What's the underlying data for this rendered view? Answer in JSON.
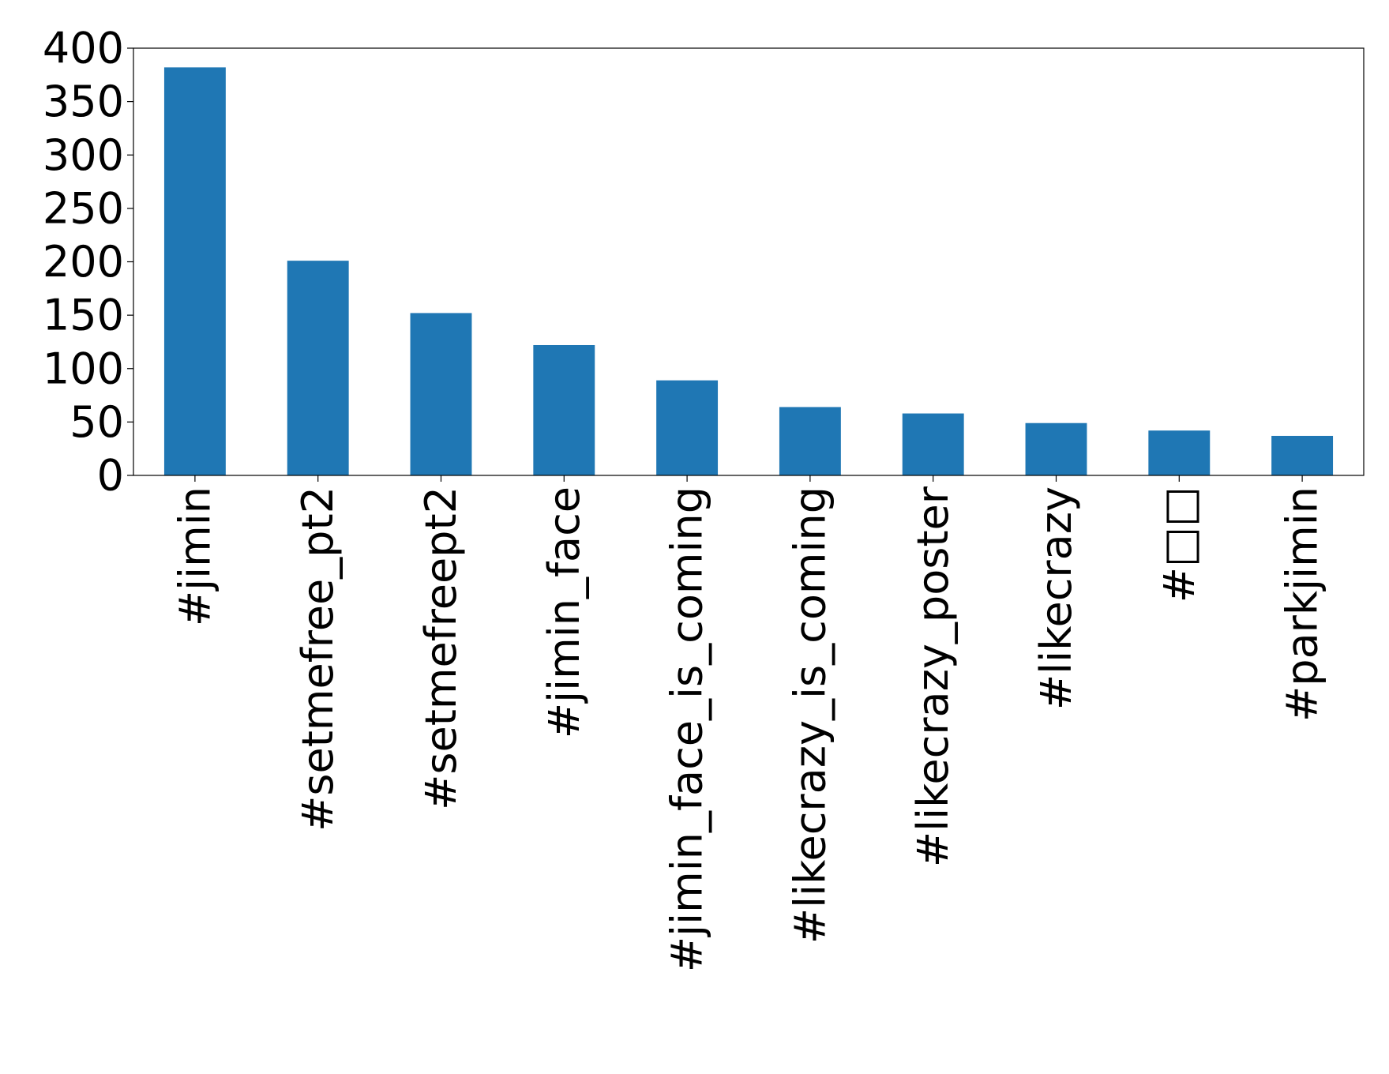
{
  "chart_data": {
    "type": "bar",
    "categories": [
      "#jimin",
      "#setmefree_pt2",
      "#setmefreept2",
      "#jimin_face",
      "#jimin_face_is_coming",
      "#likecrazy_is_coming",
      "#likecrazy_poster",
      "#likecrazy",
      "#□□",
      "#parkjimin"
    ],
    "values": [
      382,
      201,
      152,
      122,
      89,
      64,
      58,
      49,
      42,
      37
    ],
    "color": "#1f77b4",
    "ylim": [
      0,
      400
    ],
    "yticks": [
      0,
      50,
      100,
      150,
      200,
      250,
      300,
      350,
      400
    ],
    "grid": false
  }
}
